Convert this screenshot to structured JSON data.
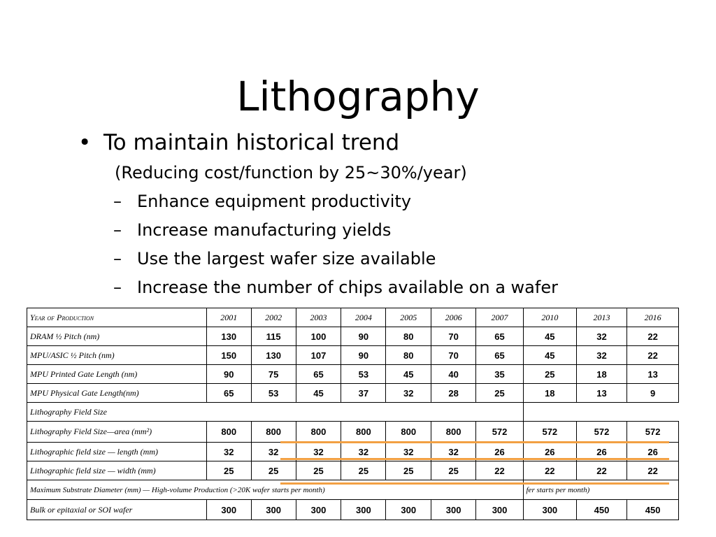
{
  "slide": {
    "title": "Lithography",
    "bullet": "To maintain historical trend",
    "bullet_mark": "•",
    "note": "(Reducing cost/function by 25~30%/year)",
    "dash_mark": "–",
    "sub_items": [
      "Enhance equipment productivity",
      "Increase manufacturing yields",
      "Use the largest wafer size available",
      "Increase the number of chips available on a wafer"
    ]
  },
  "table_left": {
    "headers": [
      "Year of Production",
      "2001",
      "2002",
      "2003",
      "2004",
      "2005",
      "2006",
      "2007"
    ],
    "rows": [
      {
        "label": "DRAM ½ Pitch (nm)",
        "values": [
          "130",
          "115",
          "100",
          "90",
          "80",
          "70",
          "65"
        ]
      },
      {
        "label": "MPU/ASIC ½ Pitch (nm)",
        "values": [
          "150",
          "130",
          "107",
          "90",
          "80",
          "70",
          "65"
        ]
      },
      {
        "label": "MPU  Printed Gate Length (nm)",
        "values": [
          "90",
          "75",
          "65",
          "53",
          "45",
          "40",
          "35"
        ]
      },
      {
        "label": "MPU Physical Gate Length(nm)",
        "values": [
          "65",
          "53",
          "45",
          "37",
          "32",
          "28",
          "25"
        ]
      }
    ],
    "section_label": "Lithography Field Size",
    "field_rows": [
      {
        "label": "Lithography Field Size—area (mm²)",
        "values": [
          "800",
          "800",
          "800",
          "800",
          "800",
          "800",
          "572"
        ]
      },
      {
        "label": "Lithographic field size — length (mm)",
        "values": [
          "32",
          "32",
          "32",
          "32",
          "32",
          "32",
          "26"
        ]
      },
      {
        "label": "Lithographic field size — width (mm)",
        "values": [
          "25",
          "25",
          "25",
          "25",
          "25",
          "25",
          "22"
        ]
      }
    ],
    "substrate_label": "Maximum Substrate Diameter (mm) — High-volume Production (>20K wafer starts per month)",
    "wafer_row": {
      "label": "Bulk or epitaxial or SOI wafer",
      "values": [
        "300",
        "300",
        "300",
        "300",
        "300",
        "300",
        "300"
      ]
    }
  },
  "table_right": {
    "headers": [
      "2010",
      "2013",
      "2016"
    ],
    "rows": [
      [
        "45",
        "32",
        "22"
      ],
      [
        "45",
        "32",
        "22"
      ],
      [
        "25",
        "18",
        "13"
      ],
      [
        "18",
        "13",
        "9"
      ]
    ],
    "field_rows": [
      [
        "572",
        "572",
        "572"
      ],
      [
        "26",
        "26",
        "26"
      ],
      [
        "22",
        "22",
        "22"
      ]
    ],
    "substrate_fragment": "fer starts per month)",
    "wafer_row": [
      "300",
      "450",
      "450"
    ]
  },
  "colors": {
    "highlight_line": "#f2a043"
  }
}
